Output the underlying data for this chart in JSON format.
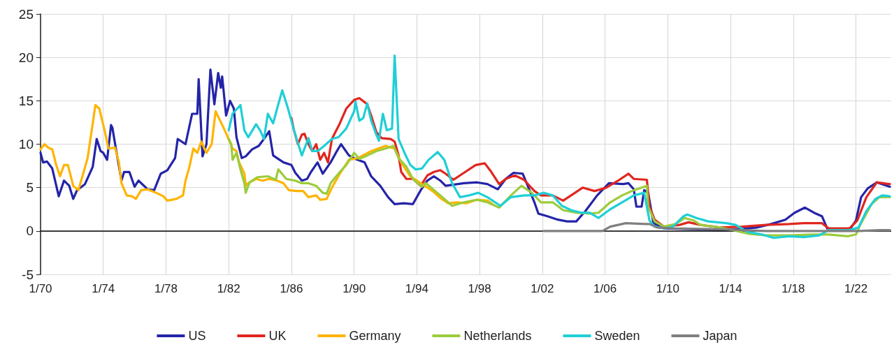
{
  "chart_data": {
    "type": "line",
    "xlim": [
      "1970-01",
      "2024-04"
    ],
    "ylim": [
      -5,
      25
    ],
    "yticks": [
      -5,
      0,
      5,
      10,
      15,
      20,
      25
    ],
    "xticks": [
      {
        "value": "1970-01",
        "label": "1/70"
      },
      {
        "value": "1974-01",
        "label": "1/74"
      },
      {
        "value": "1978-01",
        "label": "1/78"
      },
      {
        "value": "1982-01",
        "label": "1/82"
      },
      {
        "value": "1986-01",
        "label": "1/86"
      },
      {
        "value": "1990-01",
        "label": "1/90"
      },
      {
        "value": "1994-01",
        "label": "1/94"
      },
      {
        "value": "1998-01",
        "label": "1/98"
      },
      {
        "value": "2002-01",
        "label": "1/02"
      },
      {
        "value": "2006-01",
        "label": "1/06"
      },
      {
        "value": "2010-01",
        "label": "1/10"
      },
      {
        "value": "2014-01",
        "label": "1/14"
      },
      {
        "value": "2018-01",
        "label": "1/18"
      },
      {
        "value": "2022-01",
        "label": "1/22"
      }
    ],
    "grid": true,
    "legend": "bottom",
    "marker": "none",
    "line_style": "solid",
    "ref_lines": [
      {
        "axis": "y",
        "value": 0,
        "color": "#000000",
        "line_style": "solid"
      }
    ],
    "series": [
      {
        "name": "US",
        "color": "#2424a8",
        "x": [
          "1970-01",
          "1970-03",
          "1970-06",
          "1970-10",
          "1971-03",
          "1971-07",
          "1971-11",
          "1972-02",
          "1972-05",
          "1972-11",
          "1973-05",
          "1973-08",
          "1973-11",
          "1974-01",
          "1974-04",
          "1974-07",
          "1974-08",
          "1974-11",
          "1975-03",
          "1975-05",
          "1975-09",
          "1976-01",
          "1976-04",
          "1976-11",
          "1977-04",
          "1977-09",
          "1978-02",
          "1978-08",
          "1978-10",
          "1979-04",
          "1979-09",
          "1980-01",
          "1980-02",
          "1980-05",
          "1980-08",
          "1980-11",
          "1981-02",
          "1981-05",
          "1981-07",
          "1981-08",
          "1981-11",
          "1982-02",
          "1982-05",
          "1982-07",
          "1982-11",
          "1983-02",
          "1983-07",
          "1983-12",
          "1984-04",
          "1984-08",
          "1984-11",
          "1985-03",
          "1985-07",
          "1986-01",
          "1986-04",
          "1986-09",
          "1987-01",
          "1987-04",
          "1987-09",
          "1988-01",
          "1988-07",
          "1988-11",
          "1989-03",
          "1989-09",
          "1990-02",
          "1990-09",
          "1991-02",
          "1991-09",
          "1992-03",
          "1992-08",
          "1993-03",
          "1993-10",
          "1994-04",
          "1994-09",
          "1995-02",
          "1995-07",
          "1995-11",
          "1997-01",
          "1997-11",
          "1998-07",
          "1999-03",
          "1999-09",
          "2000-03",
          "2000-10",
          "2001-01",
          "2001-07",
          "2001-10",
          "2002-05",
          "2003-01",
          "2003-08",
          "2004-03",
          "2004-10",
          "2005-07",
          "2006-04",
          "2007-03",
          "2007-07",
          "2007-11",
          "2008-01",
          "2008-05",
          "2008-07",
          "2008-10",
          "2009-02",
          "2009-10",
          "2013-10",
          "2015-09",
          "2016-08",
          "2017-07",
          "2018-02",
          "2018-10",
          "2019-05",
          "2019-11",
          "2020-03",
          "2021-08",
          "2022-01",
          "2022-05",
          "2022-10",
          "2023-05",
          "2024-03"
        ],
        "values": [
          9.0,
          7.9,
          8.0,
          7.2,
          4.0,
          5.8,
          5.2,
          3.7,
          4.7,
          5.4,
          7.4,
          10.6,
          9.2,
          9.0,
          8.2,
          12.2,
          11.9,
          9.2,
          5.8,
          6.8,
          6.8,
          5.1,
          5.8,
          4.8,
          4.7,
          6.6,
          7.0,
          8.4,
          10.6,
          10.0,
          13.5,
          13.5,
          17.5,
          8.6,
          10.0,
          18.6,
          14.6,
          18.2,
          16.5,
          17.8,
          13.3,
          15.0,
          14.1,
          10.8,
          8.4,
          8.6,
          9.4,
          9.8,
          10.6,
          11.5,
          8.7,
          8.3,
          7.9,
          7.6,
          6.7,
          5.8,
          6.0,
          6.8,
          7.9,
          6.6,
          7.9,
          9.0,
          10.0,
          8.7,
          8.3,
          7.9,
          6.3,
          5.2,
          3.9,
          3.1,
          3.2,
          3.1,
          4.7,
          5.8,
          6.3,
          5.8,
          5.2,
          5.5,
          5.6,
          5.4,
          4.8,
          6.0,
          6.7,
          6.6,
          5.5,
          3.3,
          2.0,
          1.7,
          1.3,
          1.1,
          1.1,
          2.3,
          4.1,
          5.5,
          5.4,
          5.5,
          4.8,
          2.8,
          2.8,
          4.7,
          4.4,
          0.9,
          0.3,
          0.1,
          0.4,
          0.8,
          1.3,
          2.1,
          2.7,
          2.1,
          1.7,
          0.3,
          0.1,
          1.2,
          3.9,
          4.9,
          5.6,
          5.1
        ]
      },
      {
        "name": "UK",
        "color": "#e0261f",
        "x": [
          "1986-01",
          "1986-03",
          "1986-06",
          "1986-09",
          "1986-11",
          "1987-02",
          "1987-05",
          "1987-08",
          "1987-11",
          "1988-02",
          "1988-05",
          "1988-08",
          "1989-02",
          "1989-07",
          "1990-01",
          "1990-05",
          "1990-11",
          "1991-02",
          "1991-06",
          "1991-10",
          "1992-05",
          "1992-08",
          "1992-11",
          "1993-01",
          "1993-05",
          "1993-10",
          "1994-04",
          "1994-09",
          "1995-02",
          "1995-07",
          "1995-11",
          "1996-05",
          "1997-01",
          "1997-10",
          "1998-05",
          "1998-10",
          "1999-04",
          "1999-09",
          "2000-04",
          "2000-11",
          "2001-07",
          "2001-12",
          "2002-09",
          "2003-05",
          "2004-01",
          "2004-08",
          "2005-05",
          "2006-02",
          "2006-11",
          "2007-07",
          "2007-11",
          "2008-09",
          "2008-11",
          "2009-03",
          "2009-10",
          "2010-10",
          "2011-05",
          "2012-02",
          "2013-05",
          "2014-10",
          "2016-04",
          "2017-10",
          "2018-09",
          "2019-11",
          "2020-04",
          "2021-08",
          "2022-02",
          "2022-09",
          "2023-05",
          "2024-03"
        ],
        "values": [
          13.0,
          11.6,
          10.0,
          11.1,
          11.2,
          10.0,
          9.2,
          10.0,
          8.2,
          9.0,
          7.9,
          10.6,
          12.4,
          14.1,
          15.1,
          15.3,
          14.6,
          13.3,
          11.4,
          10.7,
          10.6,
          10.3,
          8.7,
          6.8,
          6.0,
          6.0,
          5.2,
          6.4,
          6.8,
          7.0,
          6.6,
          5.9,
          6.7,
          7.6,
          7.8,
          6.8,
          5.4,
          6.0,
          6.4,
          5.9,
          4.6,
          4.1,
          4.1,
          3.5,
          4.3,
          5.0,
          4.6,
          5.0,
          5.8,
          6.6,
          6.0,
          5.9,
          2.8,
          1.3,
          0.5,
          0.7,
          1.0,
          0.7,
          0.4,
          0.5,
          0.7,
          0.8,
          0.9,
          0.9,
          0.3,
          0.3,
          1.2,
          3.9,
          5.6,
          5.4
        ]
      },
      {
        "name": "Germany",
        "color": "#ffb400",
        "x": [
          "1970-01",
          "1970-04",
          "1970-07",
          "1970-10",
          "1971-01",
          "1971-04",
          "1971-07",
          "1971-10",
          "1972-02",
          "1972-06",
          "1972-10",
          "1973-01",
          "1973-05",
          "1973-07",
          "1973-10",
          "1974-02",
          "1974-05",
          "1974-10",
          "1975-01",
          "1975-03",
          "1975-07",
          "1975-11",
          "1976-02",
          "1976-06",
          "1976-11",
          "1977-07",
          "1977-11",
          "1978-02",
          "1978-09",
          "1979-02",
          "1979-04",
          "1979-07",
          "1979-10",
          "1980-01",
          "1980-04",
          "1980-08",
          "1980-12",
          "1981-03",
          "1981-10",
          "1982-04",
          "1982-07",
          "1982-09",
          "1983-01",
          "1983-02",
          "1983-04",
          "1983-10",
          "1984-03",
          "1984-08",
          "1985-02",
          "1985-07",
          "1985-11",
          "1986-05",
          "1986-10",
          "1987-02",
          "1987-08",
          "1987-11",
          "1988-04",
          "1988-08",
          "1989-02",
          "1989-09",
          "1990-04",
          "1991-02",
          "1992-01",
          "1992-08",
          "1993-01",
          "1993-08",
          "1994-04",
          "1994-07",
          "1995-01",
          "1995-07",
          "1996-01",
          "1996-08",
          "1997-03",
          "1997-11",
          "1998-07",
          "1998-11"
        ],
        "values": [
          9.4,
          10.0,
          9.6,
          9.4,
          7.6,
          6.3,
          7.6,
          7.6,
          5.2,
          4.7,
          6.8,
          8.4,
          12.4,
          14.5,
          14.1,
          11.6,
          9.5,
          9.6,
          7.9,
          5.5,
          4.1,
          4.0,
          3.7,
          4.7,
          4.8,
          4.3,
          4.0,
          3.5,
          3.7,
          4.1,
          5.8,
          7.4,
          9.5,
          9.0,
          10.3,
          9.0,
          10.0,
          13.8,
          11.6,
          9.5,
          9.2,
          7.9,
          6.6,
          5.2,
          5.5,
          6.0,
          5.8,
          6.0,
          5.8,
          5.5,
          4.7,
          4.6,
          4.6,
          3.9,
          4.1,
          3.6,
          3.7,
          5.0,
          6.6,
          8.2,
          8.4,
          9.2,
          9.8,
          9.5,
          7.9,
          6.3,
          5.5,
          5.2,
          4.6,
          3.8,
          3.2,
          3.3,
          3.2,
          3.6,
          3.5,
          3.1
        ]
      },
      {
        "name": "Netherlands",
        "color": "#9ccc3c",
        "x": [
          "1982-01",
          "1982-03",
          "1982-04",
          "1982-07",
          "1982-10",
          "1983-01",
          "1983-02",
          "1983-05",
          "1983-11",
          "1984-07",
          "1985-01",
          "1985-03",
          "1985-09",
          "1986-04",
          "1986-09",
          "1987-02",
          "1987-08",
          "1988-01",
          "1988-04",
          "1988-07",
          "1989-02",
          "1989-07",
          "1990-01",
          "1990-05",
          "1990-11",
          "1991-06",
          "1992-01",
          "1992-07",
          "1992-11",
          "1993-05",
          "1993-10",
          "1994-05",
          "1994-08",
          "1995-07",
          "1996-04",
          "1997-01",
          "1997-11",
          "1998-07",
          "1999-04",
          "2000-01",
          "2000-09",
          "2001-05",
          "2001-12",
          "2002-09",
          "2003-05",
          "2004-03",
          "2005-01",
          "2005-08",
          "2006-05",
          "2007-02",
          "2007-11",
          "2008-09",
          "2008-10",
          "2009-03",
          "2009-10",
          "2010-07",
          "2011-02",
          "2011-09",
          "2012-02",
          "2013-05",
          "2014-03",
          "2015-02",
          "2016-04",
          "2017-10",
          "2019-04",
          "2020-04",
          "2021-07",
          "2022-01",
          "2022-05",
          "2023-01",
          "2023-07",
          "2024-03"
        ],
        "values": [
          10.6,
          10.0,
          8.2,
          9.0,
          7.1,
          5.5,
          4.4,
          5.6,
          6.2,
          6.3,
          5.9,
          7.1,
          6.0,
          5.8,
          5.5,
          5.5,
          5.2,
          4.4,
          4.3,
          5.5,
          6.8,
          7.6,
          9.0,
          8.3,
          8.7,
          9.2,
          9.5,
          9.8,
          8.4,
          7.4,
          6.0,
          5.1,
          5.5,
          4.1,
          2.9,
          3.3,
          3.6,
          3.3,
          2.7,
          4.1,
          5.2,
          4.4,
          3.3,
          3.3,
          2.4,
          2.1,
          2.0,
          2.1,
          3.3,
          4.1,
          4.7,
          5.2,
          2.8,
          1.1,
          0.5,
          0.8,
          1.5,
          1.2,
          0.7,
          0.4,
          0.1,
          -0.3,
          -0.5,
          -0.5,
          -0.4,
          -0.4,
          -0.6,
          -0.4,
          0.9,
          3.1,
          3.9,
          3.9
        ]
      },
      {
        "name": "Sweden",
        "color": "#1fcfd6",
        "x": [
          "1982-01",
          "1982-04",
          "1982-10",
          "1983-01",
          "1983-04",
          "1983-10",
          "1984-01",
          "1984-04",
          "1984-07",
          "1984-11",
          "1985-02",
          "1985-06",
          "1985-10",
          "1986-04",
          "1986-09",
          "1987-02",
          "1987-05",
          "1987-09",
          "1988-02",
          "1988-08",
          "1989-01",
          "1989-07",
          "1990-01",
          "1990-02",
          "1990-05",
          "1990-08",
          "1990-11",
          "1991-02",
          "1991-06",
          "1991-08",
          "1991-11",
          "1992-02",
          "1992-06",
          "1992-08",
          "1992-11",
          "1993-03",
          "1993-08",
          "1993-12",
          "1994-05",
          "1994-10",
          "1995-05",
          "1995-10",
          "1996-04",
          "1996-10",
          "1997-05",
          "1997-12",
          "1998-07",
          "1999-05",
          "2000-01",
          "2000-11",
          "2001-07",
          "2002-02",
          "2002-09",
          "2003-04",
          "2003-11",
          "2004-07",
          "2005-01",
          "2005-08",
          "2006-05",
          "2007-02",
          "2007-11",
          "2008-07",
          "2008-11",
          "2009-03",
          "2009-11",
          "2010-05",
          "2011-01",
          "2011-04",
          "2011-11",
          "2012-08",
          "2013-10",
          "2014-05",
          "2015-02",
          "2016-01",
          "2016-10",
          "2017-10",
          "2018-09",
          "2019-09",
          "2020-04",
          "2021-08",
          "2022-03",
          "2022-09",
          "2023-04",
          "2023-09",
          "2024-03"
        ],
        "values": [
          11.6,
          13.5,
          14.5,
          11.6,
          10.8,
          12.3,
          11.6,
          10.6,
          13.5,
          12.4,
          14.1,
          16.2,
          14.3,
          11.1,
          8.7,
          10.7,
          9.2,
          9.2,
          9.8,
          10.6,
          10.8,
          11.8,
          13.8,
          14.9,
          12.7,
          13.0,
          14.7,
          12.7,
          11.1,
          10.4,
          13.5,
          11.6,
          11.8,
          20.2,
          10.6,
          9.2,
          7.6,
          7.1,
          7.2,
          8.2,
          9.1,
          8.2,
          5.5,
          3.9,
          4.1,
          4.4,
          3.9,
          2.9,
          3.9,
          4.1,
          4.1,
          4.4,
          4.1,
          2.9,
          2.4,
          2.1,
          2.1,
          1.5,
          2.5,
          3.3,
          4.1,
          4.4,
          1.2,
          0.5,
          0.3,
          0.5,
          1.7,
          1.9,
          1.5,
          1.1,
          0.9,
          0.7,
          -0.1,
          -0.4,
          -0.8,
          -0.6,
          -0.7,
          -0.5,
          0.1,
          0.1,
          0.4,
          2.3,
          3.7,
          4.1,
          4.0
        ]
      },
      {
        "name": "Japan",
        "color": "#7f7f7f",
        "x": [
          "2002-02",
          "2005-11",
          "2006-05",
          "2007-05",
          "2008-08",
          "2008-11",
          "2009-05",
          "2010-05",
          "2013-05",
          "2016-04",
          "2020-01",
          "2022-03",
          "2023-07",
          "2024-03"
        ],
        "values": [
          0.0,
          0.0,
          0.5,
          0.9,
          0.8,
          0.8,
          0.4,
          0.3,
          0.2,
          0.0,
          0.0,
          0.0,
          0.1,
          0.1
        ]
      }
    ]
  }
}
